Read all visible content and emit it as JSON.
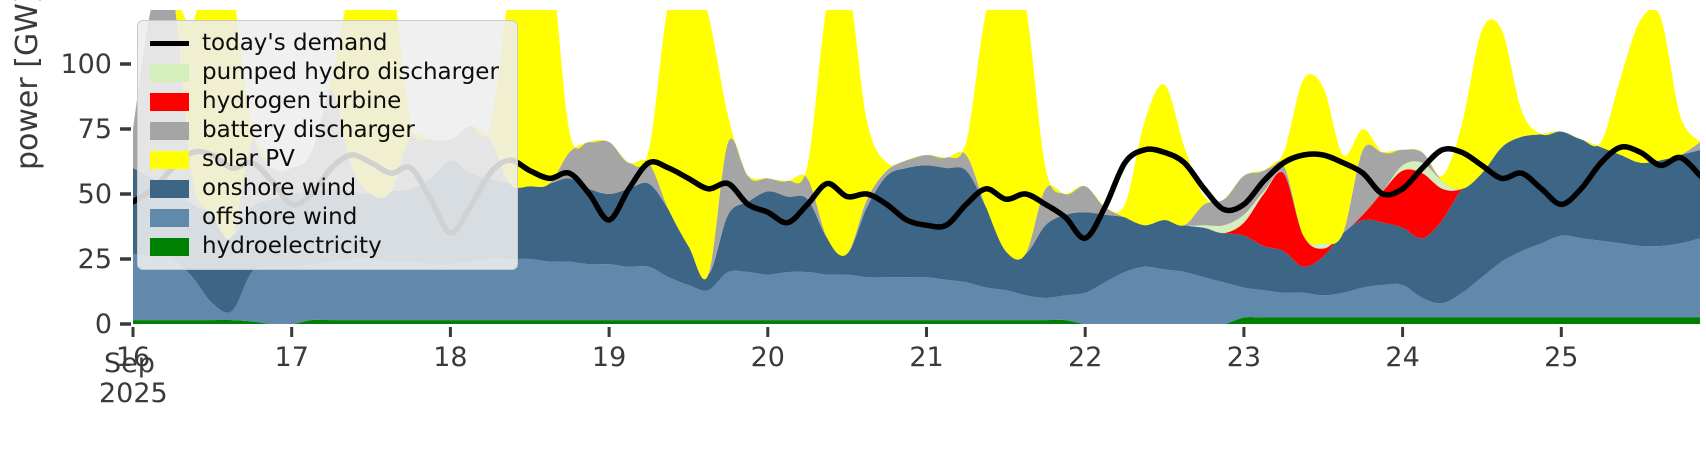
{
  "chart_data": {
    "type": "area",
    "stacked": true,
    "ylabel": "power [GW]",
    "xlabel": "",
    "grid": false,
    "legend_position": "upper left",
    "ylim": [
      0,
      120.8
    ],
    "y_ticks": [
      0,
      25,
      50,
      75,
      100
    ],
    "x_axis": {
      "tick_days": [
        16,
        17,
        18,
        19,
        20,
        21,
        22,
        23,
        24,
        25
      ],
      "month": "Sep",
      "year": "2025"
    },
    "x_start_day": 16,
    "x_step_days": 0.125,
    "x_end_day": 25.875,
    "stack_order_bottom_to_top": [
      "hydroelectricity",
      "offshore wind",
      "onshore wind",
      "hydrogen turbine",
      "pumped hydro discharger",
      "battery discharger",
      "solar PV"
    ],
    "series": [
      {
        "name": "hydroelectricity",
        "color": "#008000",
        "values": [
          1.5,
          1.5,
          1.5,
          1.5,
          1.5,
          1.5,
          1,
          0,
          0,
          1.5,
          1.5,
          1.5,
          1.5,
          1.5,
          1.5,
          1.5,
          1.5,
          1.5,
          1.5,
          1.5,
          1.5,
          1.5,
          1.5,
          1.5,
          1.5,
          1.5,
          1.5,
          1.5,
          1.5,
          1.5,
          1.5,
          1.5,
          1.5,
          1.5,
          1.5,
          1.5,
          1.5,
          1.5,
          1.5,
          1.5,
          1.5,
          1.5,
          1.5,
          1.5,
          1.5,
          1.5,
          1.5,
          1.5,
          0,
          0,
          0,
          0,
          0,
          0,
          0,
          0,
          2.5,
          2.5,
          2.5,
          2.5,
          2.5,
          2.5,
          2.5,
          2.5,
          2.5,
          2.5,
          2.5,
          2.5,
          2.5,
          2.5,
          2.5,
          2.5,
          2.5,
          2.5,
          2.5,
          2.5,
          2.5,
          2.5,
          2.5,
          2.5
        ]
      },
      {
        "name": "offshore wind",
        "color": "#6089ab",
        "values": [
          25.5,
          24.5,
          23.5,
          16.5,
          6.5,
          3.5,
          19,
          22,
          22,
          21.5,
          22.5,
          23.5,
          23.5,
          22.5,
          22.5,
          21.5,
          21.5,
          22.5,
          23.5,
          23.5,
          23.5,
          22.5,
          22.5,
          21.5,
          21.5,
          20.5,
          20.5,
          16.5,
          13.5,
          11.5,
          18.5,
          18.5,
          17.5,
          18.5,
          18.5,
          17.5,
          17.5,
          16.5,
          16.5,
          16.5,
          16.5,
          15.5,
          14.5,
          12.5,
          11.5,
          9.5,
          8.5,
          9.5,
          12,
          16,
          20,
          22,
          21,
          20,
          18,
          16,
          11.5,
          10.5,
          9.5,
          9.5,
          8.5,
          9.5,
          11.5,
          12.5,
          12.5,
          7.5,
          5.5,
          9.5,
          15.5,
          21.5,
          25.5,
          28.5,
          31.5,
          30.5,
          29.5,
          28.5,
          27.5,
          27.5,
          28.5,
          30.5
        ]
      },
      {
        "name": "onshore wind",
        "color": "#3d6586",
        "values": [
          33,
          30,
          27,
          28,
          34,
          29,
          25,
          26,
          28,
          28,
          28,
          26,
          25,
          27,
          28,
          33,
          40,
          34,
          31,
          29,
          28,
          30,
          32,
          29,
          27,
          30,
          32,
          26,
          15,
          6,
          22,
          27,
          32,
          29,
          28,
          14,
          8,
          27,
          39,
          42,
          43,
          43,
          43,
          31,
          15,
          16,
          28,
          31,
          31,
          26,
          21,
          16,
          19,
          18,
          19,
          19,
          20,
          17,
          16,
          10,
          15,
          23,
          26,
          24,
          22,
          23,
          32,
          40,
          40,
          44,
          44,
          42,
          40,
          38,
          36,
          34,
          32,
          33,
          34,
          34
        ]
      },
      {
        "name": "hydrogen turbine",
        "color": "#ff0000",
        "values": [
          0,
          0,
          0,
          0,
          0,
          0,
          0,
          0,
          0,
          0,
          0,
          0,
          0,
          0,
          0,
          0,
          0,
          0,
          0,
          0,
          0,
          0,
          0,
          0,
          0,
          0,
          0,
          0,
          0,
          0,
          0,
          0,
          0,
          0,
          0,
          0,
          0,
          0,
          0,
          0,
          0,
          0,
          0,
          0,
          0,
          0,
          0,
          0,
          0,
          0,
          0,
          0,
          0,
          0,
          0,
          0,
          5,
          20,
          30,
          12,
          3,
          0,
          2,
          12,
          22,
          25,
          12,
          0,
          0,
          0,
          0,
          0,
          0,
          0,
          0,
          0,
          0,
          0,
          0,
          0
        ]
      },
      {
        "name": "pumped hydro discharger",
        "color": "#d5efbc",
        "values": [
          0,
          0,
          0,
          0,
          0,
          0,
          0,
          0,
          0,
          0,
          0,
          0,
          0,
          0,
          0,
          0,
          0,
          0,
          0,
          0,
          0,
          0,
          0,
          0,
          0,
          0,
          0,
          0,
          0,
          0,
          0,
          0,
          0,
          0,
          0,
          0,
          0,
          0,
          0,
          0,
          0,
          0,
          0,
          0,
          0,
          0,
          0,
          0,
          0,
          0,
          0,
          0,
          0,
          0,
          1,
          3,
          3,
          1,
          0,
          0,
          2,
          0,
          0,
          0,
          2,
          4,
          3,
          0,
          0,
          0,
          0,
          0,
          0,
          0,
          0,
          0,
          0,
          0,
          0,
          0
        ]
      },
      {
        "name": "battery discharger",
        "color": "#a5a5a5",
        "values": [
          15,
          68,
          75,
          10,
          0,
          0,
          25,
          12,
          10,
          15,
          38,
          10,
          0,
          0,
          20,
          15,
          8,
          18,
          15,
          0,
          0,
          0,
          10,
          18,
          20,
          10,
          8,
          0,
          0,
          0,
          28,
          10,
          5,
          6,
          8,
          0,
          0,
          3,
          2,
          3,
          4,
          4,
          6,
          0,
          0,
          0,
          14,
          8,
          10,
          3,
          0,
          0,
          0,
          0,
          8,
          10,
          15,
          8,
          3,
          0,
          0,
          0,
          25,
          15,
          6,
          4,
          0,
          0,
          0,
          0,
          0,
          0,
          0,
          0,
          0,
          0,
          0,
          0,
          0,
          3
        ]
      },
      {
        "name": "solar PV",
        "color": "#ffff00",
        "values": [
          0,
          0,
          0,
          60,
          105,
          95,
          5,
          0,
          0,
          0,
          5,
          70,
          100,
          85,
          5,
          0,
          0,
          0,
          5,
          75,
          100,
          90,
          8,
          0,
          0,
          0,
          5,
          80,
          110,
          100,
          10,
          0,
          0,
          0,
          5,
          90,
          105,
          30,
          3,
          0,
          0,
          0,
          5,
          75,
          110,
          95,
          8,
          0,
          0,
          0,
          5,
          40,
          52,
          30,
          3,
          0,
          0,
          0,
          5,
          60,
          60,
          30,
          8,
          0,
          0,
          0,
          2,
          25,
          55,
          45,
          10,
          0,
          0,
          0,
          2,
          30,
          55,
          55,
          15,
          0
        ]
      }
    ],
    "demand_line": {
      "name": "today's demand",
      "color": "#000000",
      "values": [
        47,
        52,
        60,
        66,
        65,
        60,
        62,
        55,
        46,
        50,
        60,
        65,
        62,
        58,
        60,
        48,
        35,
        45,
        58,
        63,
        59,
        56,
        58,
        50,
        40,
        52,
        62,
        60,
        56,
        52,
        54,
        46,
        43,
        39,
        46,
        54,
        49,
        50,
        46,
        40,
        38,
        38,
        46,
        52,
        48,
        50,
        46,
        41,
        33,
        45,
        62,
        67,
        66,
        62,
        52,
        44,
        46,
        55,
        62,
        65,
        65,
        62,
        58,
        50,
        52,
        60,
        67,
        66,
        61,
        56,
        58,
        52,
        46,
        52,
        62,
        68,
        66,
        61,
        64,
        57
      ]
    }
  },
  "legend": {
    "items": [
      {
        "label": "today's demand",
        "color": "#000000",
        "kind": "line"
      },
      {
        "label": "pumped hydro discharger",
        "color": "#d5efbc",
        "kind": "patch"
      },
      {
        "label": "hydrogen turbine",
        "color": "#ff0000",
        "kind": "patch"
      },
      {
        "label": "battery discharger",
        "color": "#a5a5a5",
        "kind": "patch"
      },
      {
        "label": "solar PV",
        "color": "#ffff00",
        "kind": "patch"
      },
      {
        "label": "onshore wind",
        "color": "#3d6586",
        "kind": "patch"
      },
      {
        "label": "offshore wind",
        "color": "#6089ab",
        "kind": "patch"
      },
      {
        "label": "hydroelectricity",
        "color": "#008000",
        "kind": "patch"
      }
    ]
  }
}
